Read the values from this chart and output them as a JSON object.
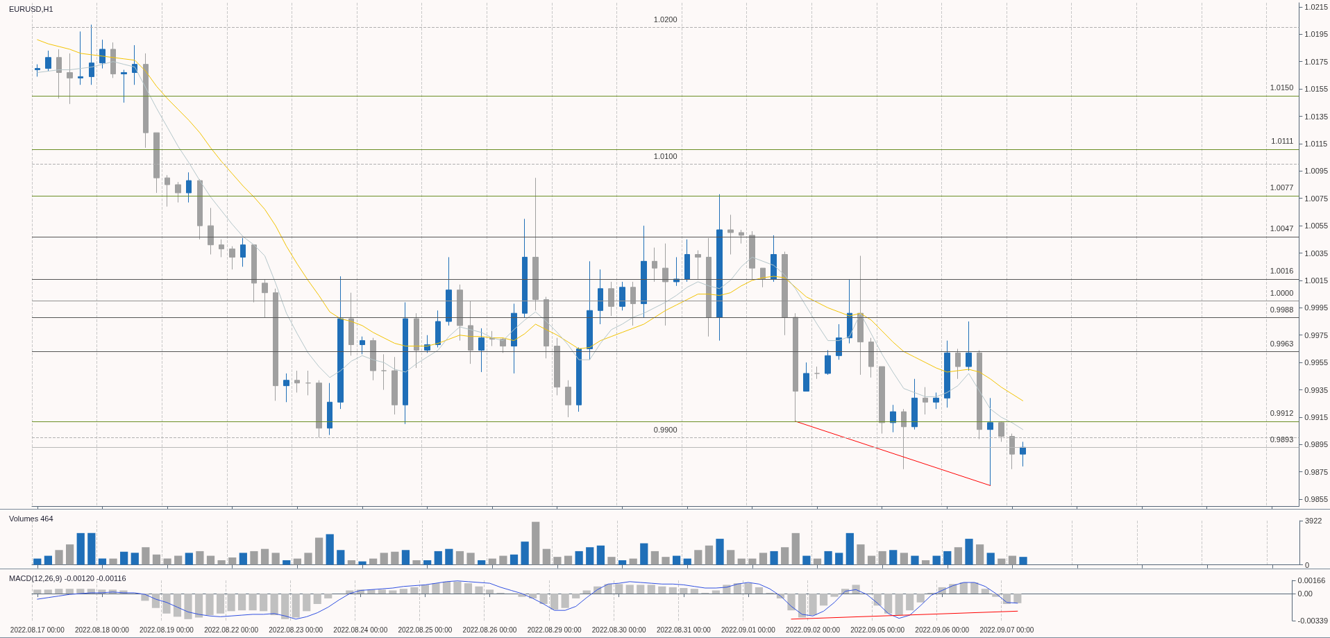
{
  "chart_data": [
    {
      "type": "candlestick",
      "title": "EURUSD,H1",
      "categories": [
        null,
        null,
        null,
        null,
        null,
        null,
        null,
        null,
        null,
        null,
        null,
        null,
        null,
        null,
        null,
        null,
        null,
        null,
        null,
        null,
        null,
        null,
        null,
        null,
        null,
        null,
        null,
        null,
        null,
        null,
        null,
        null,
        null,
        null,
        null,
        null,
        null,
        null,
        null,
        null,
        null,
        null,
        null,
        null,
        null,
        null,
        null,
        null,
        null,
        null,
        null,
        null,
        null,
        null,
        null,
        null,
        null,
        null,
        null,
        null,
        null,
        null,
        null,
        null,
        null,
        null,
        null,
        null,
        null,
        null,
        null,
        null,
        null,
        null,
        null,
        null,
        null,
        null,
        null,
        null,
        null,
        null,
        null,
        null,
        null,
        null,
        null,
        null,
        null,
        null,
        null,
        null,
        null,
        null,
        null,
        null,
        null,
        null,
        null,
        null,
        null,
        null,
        null,
        null,
        null,
        null,
        null,
        null,
        null,
        null,
        null,
        null,
        null,
        null,
        null,
        null,
        null
      ],
      "ohlc": [
        [
          1.0169,
          1.0173,
          1.0164,
          1.017
        ],
        [
          1.017,
          1.0183,
          1.0168,
          1.0178
        ],
        [
          1.0178,
          1.0184,
          1.0148,
          1.0167
        ],
        [
          1.0167,
          1.0181,
          1.0144,
          1.0163
        ],
        [
          1.0163,
          1.0197,
          1.0158,
          1.0164
        ],
        [
          1.0164,
          1.0202,
          1.0158,
          1.0174
        ],
        [
          1.0174,
          1.0191,
          1.017,
          1.0184
        ],
        [
          1.0184,
          1.0189,
          1.0163,
          1.0166
        ],
        [
          1.0166,
          1.0169,
          1.0145,
          1.0167
        ],
        [
          1.0167,
          1.0187,
          1.0158,
          1.0173
        ],
        [
          1.0173,
          1.0181,
          1.0112,
          1.0123
        ],
        [
          1.0123,
          1.0123,
          1.0079,
          1.009
        ],
        [
          1.009,
          1.0092,
          1.0069,
          1.0085
        ],
        [
          1.0085,
          1.0087,
          1.0072,
          1.0079
        ],
        [
          1.0079,
          1.0094,
          1.0072,
          1.0088
        ],
        [
          1.0088,
          1.0089,
          1.0045,
          1.0055
        ],
        [
          1.0055,
          1.0068,
          1.0034,
          1.0041
        ],
        [
          1.0041,
          1.0045,
          1.0032,
          1.0038
        ],
        [
          1.0038,
          1.004,
          1.0023,
          1.0032
        ],
        [
          1.0032,
          1.0046,
          1.0025,
          1.0041
        ],
        [
          1.0041,
          1.0041,
          0.9999,
          1.0013
        ],
        [
          1.0013,
          1.0016,
          0.9988,
          1.0006
        ],
        [
          1.0006,
          1.0009,
          0.9927,
          0.9938
        ],
        [
          0.9938,
          0.9947,
          0.9926,
          0.9942
        ],
        [
          0.9942,
          0.9949,
          0.9933,
          0.994
        ],
        [
          0.994,
          0.9949,
          0.9931,
          0.994
        ],
        [
          0.994,
          0.9942,
          0.99,
          0.9907
        ],
        [
          0.9907,
          0.994,
          0.9902,
          0.9926
        ],
        [
          0.9926,
          1.0018,
          0.9921,
          0.9987
        ],
        [
          0.9987,
          1.0006,
          0.996,
          0.9968
        ],
        [
          0.9968,
          0.9974,
          0.9961,
          0.9971
        ],
        [
          0.9971,
          0.9973,
          0.9942,
          0.9949
        ],
        [
          0.9949,
          0.9961,
          0.9935,
          0.9949
        ],
        [
          0.9949,
          0.9959,
          0.9917,
          0.9924
        ],
        [
          0.9924,
          0.9999,
          0.991,
          0.9987
        ],
        [
          0.9987,
          0.9991,
          0.9951,
          0.9964
        ],
        [
          0.9964,
          0.9975,
          0.9962,
          0.9968
        ],
        [
          0.9968,
          0.9993,
          0.9966,
          0.9985
        ],
        [
          0.9985,
          1.0032,
          0.9982,
          1.0008
        ],
        [
          1.0008,
          1.0012,
          0.9971,
          0.9982
        ],
        [
          0.9982,
          1.0,
          0.9954,
          0.9964
        ],
        [
          0.9964,
          0.998,
          0.9948,
          0.9973
        ],
        [
          0.9973,
          0.9978,
          0.9967,
          0.9972
        ],
        [
          0.9972,
          0.9973,
          0.9962,
          0.9967
        ],
        [
          0.9967,
          0.9998,
          0.9947,
          0.9991
        ],
        [
          0.9991,
          1.006,
          0.9988,
          1.0032
        ],
        [
          1.0032,
          1.009,
          0.9993,
          1.0001
        ],
        [
          1.0001,
          1.0003,
          0.9958,
          0.9967
        ],
        [
          0.9967,
          0.9973,
          0.9931,
          0.9937
        ],
        [
          0.9937,
          0.9942,
          0.9915,
          0.9924
        ],
        [
          0.9924,
          0.9966,
          0.9919,
          0.9965
        ],
        [
          0.9965,
          1.0029,
          0.9957,
          0.9993
        ],
        [
          0.9993,
          1.0023,
          0.9983,
          1.0009
        ],
        [
          1.0009,
          1.0014,
          0.9989,
          0.9996
        ],
        [
          0.9996,
          1.0014,
          0.9993,
          1.001
        ],
        [
          1.001,
          1.0014,
          0.9982,
          0.9998
        ],
        [
          0.9998,
          1.0055,
          0.9988,
          1.0029
        ],
        [
          1.0029,
          1.0039,
          1.0014,
          1.0024
        ],
        [
          1.0024,
          1.0042,
          0.9982,
          1.0014
        ],
        [
          1.0014,
          1.0032,
          1.0011,
          1.0016
        ],
        [
          1.0016,
          1.0045,
          1.0014,
          1.0034
        ],
        [
          1.0034,
          1.0037,
          1.0016,
          1.0032
        ],
        [
          1.0032,
          1.0046,
          0.9974,
          0.9988
        ],
        [
          0.9988,
          1.0078,
          0.9971,
          1.0052
        ],
        [
          1.0052,
          1.0063,
          1.0034,
          1.005
        ],
        [
          1.005,
          1.0052,
          1.0042,
          1.0048
        ],
        [
          1.0048,
          1.0051,
          1.0016,
          1.0024
        ],
        [
          1.0024,
          1.0024,
          1.001,
          1.0016
        ],
        [
          1.0016,
          1.0048,
          1.0014,
          1.0034
        ],
        [
          1.0034,
          1.0036,
          0.9975,
          0.9988
        ],
        [
          0.9988,
          0.9991,
          0.9912,
          0.9934
        ],
        [
          0.9934,
          0.9955,
          0.9934,
          0.9947
        ],
        [
          0.9947,
          0.9952,
          0.9943,
          0.9947
        ],
        [
          0.9947,
          0.9964,
          0.9946,
          0.996
        ],
        [
          0.996,
          0.9983,
          0.9957,
          0.9973
        ],
        [
          0.9973,
          1.0016,
          0.9969,
          0.9991
        ],
        [
          0.9991,
          1.0033,
          0.9946,
          0.997
        ],
        [
          0.997,
          0.9973,
          0.9944,
          0.9952
        ],
        [
          0.9952,
          0.9952,
          0.9903,
          0.9911
        ],
        [
          0.9911,
          0.9924,
          0.9904,
          0.9919
        ],
        [
          0.9919,
          0.9921,
          0.9877,
          0.9908
        ],
        [
          0.9908,
          0.9943,
          0.9906,
          0.9929
        ],
        [
          0.9929,
          0.9937,
          0.9917,
          0.9926
        ],
        [
          0.9926,
          0.9933,
          0.9921,
          0.9929
        ],
        [
          0.9929,
          0.9971,
          0.9922,
          0.9962
        ],
        [
          0.9962,
          0.9965,
          0.9943,
          0.9952
        ],
        [
          0.9952,
          0.9985,
          0.9949,
          0.9962
        ],
        [
          0.9962,
          0.9964,
          0.9899,
          0.9906
        ],
        [
          0.9906,
          0.9929,
          0.9865,
          0.9911
        ],
        [
          0.9911,
          0.9912,
          0.9897,
          0.9901
        ],
        [
          0.9901,
          0.9903,
          0.9877,
          0.9888
        ],
        [
          0.9888,
          0.9897,
          0.9879,
          0.9893
        ],
        null,
        null,
        null,
        null,
        null,
        null,
        null,
        null,
        null,
        null,
        null,
        null,
        null,
        null,
        null,
        null,
        null,
        null,
        null,
        null,
        null,
        null,
        null,
        null,
        null
      ],
      "colors": [
        "#1f6fb8",
        "#1f6fb8",
        "#a0a0a0",
        "#a0a0a0",
        "#1f6fb8",
        "#1f6fb8",
        "#1f6fb8",
        "#a0a0a0",
        "#1f6fb8",
        "#1f6fb8",
        "#a0a0a0",
        "#a0a0a0",
        "#a0a0a0",
        "#a0a0a0",
        "#1f6fb8",
        "#a0a0a0",
        "#a0a0a0",
        "#a0a0a0",
        "#a0a0a0",
        "#1f6fb8",
        "#a0a0a0",
        "#a0a0a0",
        "#a0a0a0",
        "#1f6fb8",
        "#a0a0a0",
        "#a0a0a0",
        "#a0a0a0",
        "#1f6fb8",
        "#1f6fb8",
        "#a0a0a0",
        "#1f6fb8",
        "#a0a0a0",
        "#a0a0a0",
        "#a0a0a0",
        "#1f6fb8",
        "#a0a0a0",
        "#1f6fb8",
        "#1f6fb8",
        "#1f6fb8",
        "#a0a0a0",
        "#a0a0a0",
        "#1f6fb8",
        "#a0a0a0",
        "#a0a0a0",
        "#1f6fb8",
        "#1f6fb8",
        "#a0a0a0",
        "#a0a0a0",
        "#a0a0a0",
        "#a0a0a0",
        "#1f6fb8",
        "#1f6fb8",
        "#1f6fb8",
        "#a0a0a0",
        "#1f6fb8",
        "#a0a0a0",
        "#1f6fb8",
        "#a0a0a0",
        "#a0a0a0",
        "#1f6fb8",
        "#1f6fb8",
        "#a0a0a0",
        "#a0a0a0",
        "#1f6fb8",
        "#a0a0a0",
        "#a0a0a0",
        "#a0a0a0",
        "#a0a0a0",
        "#1f6fb8",
        "#a0a0a0",
        "#a0a0a0",
        "#1f6fb8",
        "#a0a0a0",
        "#1f6fb8",
        "#1f6fb8",
        "#1f6fb8",
        "#a0a0a0",
        "#a0a0a0",
        "#a0a0a0",
        "#1f6fb8",
        "#a0a0a0",
        "#1f6fb8",
        "#a0a0a0",
        "#1f6fb8",
        "#1f6fb8",
        "#a0a0a0",
        "#1f6fb8",
        "#a0a0a0",
        "#1f6fb8",
        "#a0a0a0",
        "#a0a0a0",
        "#1f6fb8",
        null,
        null,
        null,
        null,
        null,
        null,
        null,
        null,
        null,
        null,
        null,
        null,
        null,
        null,
        null,
        null,
        null,
        null,
        null,
        null,
        null,
        null,
        null,
        null,
        null
      ],
      "series": [
        {
          "type": "line",
          "color": "#f2c300",
          "values": [
            1.0191,
            1.0188,
            1.0186,
            1.0184,
            1.0181,
            1.018,
            1.0179,
            1.0178,
            1.0177,
            1.0176,
            1.0168,
            1.0157,
            1.0148,
            1.014,
            1.0132,
            1.0123,
            1.0112,
            1.0102,
            1.0093,
            1.0084,
            1.0076,
            1.0067,
            1.0055,
            1.004,
            1.0027,
            1.0015,
            1.0004,
            0.9992,
            0.9987,
            0.9985,
            0.9982,
            0.9977,
            0.9973,
            0.9969,
            0.9967,
            0.9967,
            0.9967,
            0.9969,
            0.9972,
            0.9975,
            0.9974,
            0.9974,
            0.9973,
            0.9973,
            0.9971,
            0.9976,
            0.9983,
            0.9979,
            0.9975,
            0.997,
            0.9965,
            0.9966,
            0.9971,
            0.9974,
            0.9977,
            0.998,
            0.9983,
            0.9988,
            0.9993,
            0.9997,
            1.0001,
            1.0005,
            1.0005,
            1.0004,
            1.0006,
            1.0011,
            1.0015,
            1.0017,
            1.0018,
            1.0017,
            1.001,
            1.0003,
            0.9999,
            0.9995,
            0.9992,
            0.9989,
            0.9991,
            0.9986,
            0.9978,
            0.997,
            0.9963,
            0.9959,
            0.9955,
            0.9951,
            0.9948,
            0.9949,
            0.995,
            0.9948,
            0.9943,
            0.9937,
            0.9932,
            0.9927,
            null,
            null,
            null,
            null,
            null,
            null,
            null,
            null,
            null,
            null,
            null,
            null,
            null,
            null,
            null,
            null,
            null,
            null,
            null,
            null,
            null,
            null,
            null,
            null,
            null
          ]
        },
        {
          "type": "line",
          "color": "#b4c6ca",
          "values": [
            1.0167,
            1.0168,
            1.0169,
            1.0169,
            1.017,
            1.0171,
            1.0173,
            1.0175,
            1.0173,
            1.0171,
            1.0156,
            1.0141,
            1.0127,
            1.0113,
            1.0101,
            1.0088,
            1.0076,
            1.0066,
            1.0056,
            1.0047,
            1.0041,
            1.0033,
            1.0013,
            0.9991,
            0.9976,
            0.9962,
            0.9952,
            0.9944,
            0.9949,
            0.9956,
            0.996,
            0.9957,
            0.9955,
            0.995,
            0.9948,
            0.9954,
            0.9959,
            0.9964,
            0.9974,
            0.9981,
            0.9979,
            0.9977,
            0.9973,
            0.9971,
            0.9979,
            0.9986,
            0.9992,
            0.9985,
            0.9977,
            0.9968,
            0.9957,
            0.9957,
            0.9969,
            0.9979,
            0.9983,
            0.9988,
            0.9991,
            0.9995,
            0.9999,
            1.0004,
            1.001,
            1.0014,
            1.0011,
            1.0009,
            1.0015,
            1.0025,
            1.0032,
            1.0029,
            1.0026,
            1.0019,
            1.0009,
            0.9996,
            0.9983,
            0.9971,
            0.9971,
            0.9974,
            0.9991,
            0.9976,
            0.9961,
            0.9948,
            0.9936,
            0.9933,
            0.993,
            0.993,
            0.9933,
            0.9938,
            0.9947,
            0.9934,
            0.9921,
            0.9915,
            0.9911,
            0.9906,
            null,
            null,
            null,
            null,
            null,
            null,
            null,
            null,
            null,
            null,
            null,
            null,
            null,
            null,
            null,
            null,
            null,
            null,
            null,
            null,
            null,
            null,
            null,
            null,
            null
          ]
        },
        {
          "type": "line",
          "color": "#ff0000",
          "values": [
            null,
            null,
            null,
            null,
            null,
            null,
            null,
            null,
            null,
            null,
            null,
            null,
            null,
            null,
            null,
            null,
            null,
            null,
            null,
            null,
            null,
            null,
            null,
            null,
            null,
            null,
            null,
            null,
            null,
            null,
            null,
            null,
            null,
            null,
            null,
            null,
            null,
            null,
            null,
            null,
            null,
            null,
            null,
            null,
            null,
            null,
            null,
            null,
            null,
            null,
            null,
            null,
            null,
            null,
            null,
            null,
            null,
            null,
            null,
            null,
            null,
            null,
            null,
            null,
            null,
            null,
            null,
            null,
            null,
            null,
            0.9912,
            null,
            null,
            null,
            null,
            null,
            null,
            null,
            null,
            null,
            null,
            null,
            null,
            null,
            null,
            null,
            null,
            null,
            0.9865,
            null,
            null,
            null,
            null,
            null,
            null,
            null,
            null,
            null,
            null,
            null,
            null,
            null,
            null,
            null,
            null,
            null,
            null,
            null,
            null,
            null,
            null,
            null,
            null,
            null,
            null,
            null,
            null
          ]
        }
      ],
      "ref_lines": [
        {
          "axis": "y",
          "value": 1.015,
          "label": "1.0150",
          "color": "#6b8e23"
        },
        {
          "axis": "y",
          "value": 1.0111,
          "label": "1.0111",
          "color": "#6b8e23"
        },
        {
          "axis": "y",
          "value": 1.0077,
          "label": "1.0077",
          "color": "#6b8e23"
        },
        {
          "axis": "y",
          "value": 0.9912,
          "label": "0.9912",
          "color": "#6b8e23"
        },
        {
          "axis": "y",
          "value": 0.9893,
          "label": "0.9893",
          "color": "#b8b8b8"
        },
        {
          "axis": "y",
          "value": 1.02,
          "label": "1.0200",
          "color": "#b0b0b0",
          "line_style": "dashed"
        },
        {
          "axis": "y",
          "value": 1.01,
          "label": "1.0100",
          "color": "#b0b0b0",
          "line_style": "dashed"
        },
        {
          "axis": "y",
          "value": 1.0,
          "label": "1.0000",
          "color": "#909090"
        },
        {
          "axis": "y",
          "value": 0.99,
          "label": "0.9900",
          "color": "#b0b0b0",
          "line_style": "dashed"
        },
        {
          "axis": "y",
          "value": 1.0047,
          "label": "1.0047",
          "color": "#555555"
        },
        {
          "axis": "y",
          "value": 1.0016,
          "label": "1.0016",
          "color": "#555555"
        },
        {
          "axis": "y",
          "value": 0.9988,
          "label": "0.9988",
          "color": "#555555"
        },
        {
          "axis": "y",
          "value": 0.9963,
          "label": "0.9963",
          "color": "#555555"
        }
      ],
      "ylim": [
        0.985,
        1.0218
      ],
      "yticks": [
        0.9855,
        0.9875,
        0.9895,
        0.9915,
        0.9935,
        0.9955,
        0.9975,
        0.9995,
        1.0015,
        1.0035,
        1.0055,
        1.0075,
        1.0095,
        1.0115,
        1.0135,
        1.0155,
        1.0175,
        1.0195,
        1.0215
      ],
      "grid": "x",
      "marker": "none",
      "tick_labels": "y"
    },
    {
      "type": "bar",
      "title": "Volumes 464",
      "categories": [
        null,
        null,
        null,
        null,
        null,
        null,
        null,
        null,
        null,
        null,
        null,
        null,
        null,
        null,
        null,
        null,
        null,
        null,
        null,
        null,
        null,
        null,
        null,
        null,
        null,
        null,
        null,
        null,
        null,
        null,
        null,
        null,
        null,
        null,
        null,
        null,
        null,
        null,
        null,
        null,
        null,
        null,
        null,
        null,
        null,
        null,
        null,
        null,
        null,
        null,
        null,
        null,
        null,
        null,
        null,
        null,
        null,
        null,
        null,
        null,
        null,
        null,
        null,
        null,
        null,
        null,
        null,
        null,
        null,
        null,
        null,
        null,
        null,
        null,
        null,
        null,
        null,
        null,
        null,
        null,
        null,
        null,
        null,
        null,
        null,
        null,
        null,
        null,
        null,
        null,
        null,
        null,
        null,
        null,
        null,
        null,
        null,
        null,
        null,
        null,
        null,
        null,
        null,
        null,
        null,
        null,
        null,
        null,
        null,
        null,
        null,
        null,
        null,
        null,
        null,
        null,
        null
      ],
      "values": [
        550,
        800,
        1310,
        1810,
        2820,
        2820,
        550,
        550,
        1160,
        1060,
        1560,
        910,
        550,
        800,
        1060,
        1210,
        800,
        400,
        650,
        1060,
        1210,
        1410,
        1060,
        400,
        550,
        1060,
        2410,
        2720,
        1310,
        400,
        300,
        550,
        1060,
        1160,
        1310,
        400,
        400,
        1210,
        1410,
        1210,
        1060,
        400,
        550,
        800,
        910,
        2060,
        3820,
        1410,
        700,
        800,
        1210,
        1560,
        1710,
        700,
        400,
        550,
        1910,
        1210,
        700,
        800,
        550,
        1310,
        1710,
        2310,
        1310,
        550,
        550,
        1060,
        1210,
        1560,
        2820,
        800,
        550,
        1210,
        1060,
        2820,
        1810,
        800,
        1210,
        1310,
        1060,
        800,
        400,
        800,
        1210,
        1560,
        2310,
        1810,
        1060,
        550,
        800,
        700,
        null,
        null,
        null,
        null,
        null,
        null,
        null,
        null,
        null,
        null,
        null,
        null,
        null,
        null,
        null,
        null,
        null,
        null,
        null,
        null,
        null,
        null,
        null,
        null,
        null
      ],
      "colors": [
        "#1f6fb8",
        "#1f6fb8",
        "#a0a0a0",
        "#a0a0a0",
        "#1f6fb8",
        "#1f6fb8",
        "#1f6fb8",
        "#a0a0a0",
        "#1f6fb8",
        "#1f6fb8",
        "#a0a0a0",
        "#a0a0a0",
        "#a0a0a0",
        "#a0a0a0",
        "#1f6fb8",
        "#a0a0a0",
        "#a0a0a0",
        "#a0a0a0",
        "#a0a0a0",
        "#1f6fb8",
        "#a0a0a0",
        "#a0a0a0",
        "#a0a0a0",
        "#1f6fb8",
        "#a0a0a0",
        "#a0a0a0",
        "#a0a0a0",
        "#1f6fb8",
        "#1f6fb8",
        "#a0a0a0",
        "#1f6fb8",
        "#a0a0a0",
        "#a0a0a0",
        "#a0a0a0",
        "#1f6fb8",
        "#a0a0a0",
        "#1f6fb8",
        "#1f6fb8",
        "#1f6fb8",
        "#a0a0a0",
        "#a0a0a0",
        "#1f6fb8",
        "#a0a0a0",
        "#a0a0a0",
        "#1f6fb8",
        "#1f6fb8",
        "#a0a0a0",
        "#a0a0a0",
        "#a0a0a0",
        "#a0a0a0",
        "#1f6fb8",
        "#1f6fb8",
        "#1f6fb8",
        "#a0a0a0",
        "#1f6fb8",
        "#a0a0a0",
        "#1f6fb8",
        "#a0a0a0",
        "#a0a0a0",
        "#1f6fb8",
        "#1f6fb8",
        "#a0a0a0",
        "#a0a0a0",
        "#1f6fb8",
        "#a0a0a0",
        "#a0a0a0",
        "#a0a0a0",
        "#a0a0a0",
        "#1f6fb8",
        "#a0a0a0",
        "#a0a0a0",
        "#1f6fb8",
        "#a0a0a0",
        "#1f6fb8",
        "#1f6fb8",
        "#1f6fb8",
        "#a0a0a0",
        "#a0a0a0",
        "#a0a0a0",
        "#1f6fb8",
        "#a0a0a0",
        "#1f6fb8",
        "#a0a0a0",
        "#1f6fb8",
        "#1f6fb8",
        "#a0a0a0",
        "#1f6fb8",
        "#a0a0a0",
        "#1f6fb8",
        "#a0a0a0",
        "#a0a0a0",
        "#1f6fb8",
        null,
        null,
        null,
        null,
        null,
        null,
        null,
        null,
        null,
        null,
        null,
        null,
        null,
        null,
        null,
        null,
        null,
        null,
        null,
        null,
        null,
        null,
        null,
        null,
        null
      ],
      "ylim": [
        0,
        3922
      ],
      "yticks": [
        0,
        3922
      ],
      "grid": "x",
      "tick_labels": "y"
    },
    {
      "type": "bar",
      "title": "MACD(12,26,9) -0.00120 -0.00116",
      "categories": [
        "2022.08.17 00:00",
        null,
        null,
        null,
        null,
        null,
        "2022.08.18 00:00",
        null,
        null,
        null,
        null,
        null,
        "2022.08.19 00:00",
        null,
        null,
        null,
        null,
        null,
        "2022.08.22 00:00",
        null,
        null,
        null,
        null,
        null,
        "2022.08.23 00:00",
        null,
        null,
        null,
        null,
        null,
        "2022.08.24 00:00",
        null,
        null,
        null,
        null,
        null,
        "2022.08.25 00:00",
        null,
        null,
        null,
        null,
        null,
        "2022.08.26 00:00",
        null,
        null,
        null,
        null,
        null,
        "2022.08.29 00:00",
        null,
        null,
        null,
        null,
        null,
        "2022.08.30 00:00",
        null,
        null,
        null,
        null,
        null,
        "2022.08.31 00:00",
        null,
        null,
        null,
        null,
        null,
        "2022.09.01 00:00",
        null,
        null,
        null,
        null,
        null,
        "2022.09.02 00:00",
        null,
        null,
        null,
        null,
        null,
        "2022.09.05 00:00",
        null,
        null,
        null,
        null,
        null,
        "2022.09.06 00:00",
        null,
        null,
        null,
        null,
        null,
        "2022.09.07 00:00",
        null,
        null,
        null,
        null,
        null,
        null,
        null,
        null,
        null,
        null,
        null,
        null,
        null,
        null,
        null,
        null,
        null,
        null,
        null,
        null,
        null,
        null,
        null,
        null,
        null,
        null
      ],
      "series": [
        {
          "color": "#c0c0c0",
          "values": [
            0.0005,
            0.0005,
            0.0006,
            0.0006,
            0.0006,
            0.0006,
            0.0005,
            0.0005,
            0.0004,
            null,
            -0.0009,
            -0.0018,
            -0.0025,
            -0.0029,
            -0.0032,
            -0.003,
            -0.0027,
            -0.0025,
            -0.0022,
            -0.0021,
            -0.0021,
            -0.0022,
            -0.0027,
            -0.0032,
            -0.003,
            -0.0022,
            -0.0013,
            -0.0006,
            0,
            0.0004,
            0.0005,
            0.0005,
            0.0005,
            0.0004,
            0.0006,
            0.0008,
            0.0011,
            0.0013,
            0.0015,
            0.0015,
            0.0013,
            0.0009,
            0.0005,
            0.0001,
            null,
            -0.0004,
            -0.0006,
            -0.0013,
            -0.002,
            -0.0018,
            -0.0006,
            0.0004,
            0.0009,
            0.0012,
            0.0012,
            0.0011,
            0.0011,
            0.0011,
            0.0009,
            0.0008,
            0.0007,
            0.0006,
            0.0001,
            0.0004,
            0.0011,
            0.0013,
            0.0013,
            0.0008,
            0.0001,
            -0.0006,
            -0.0021,
            -0.003,
            -0.0027,
            -0.0015,
            -0.0004,
            0.0006,
            0.0011,
            null,
            -0.0015,
            -0.0025,
            -0.0027,
            -0.0021,
            -0.0011,
            0.0001,
            0.0008,
            0.0012,
            0.0014,
            0.0014,
            0.0006,
            -0.0004,
            -0.0013,
            -0.0012,
            null,
            null,
            null,
            null,
            null,
            null,
            null,
            null,
            null,
            null,
            null,
            null,
            null,
            null,
            null,
            null,
            null,
            null,
            null,
            null,
            null,
            null,
            null,
            null,
            null
          ]
        },
        {
          "type": "line",
          "color": "#2f4fe0",
          "values": [
            -0.0007,
            -0.0005,
            -0.0003,
            -0.0001,
            0,
            0.0001,
            0.0001,
            0.0002,
            0.0001,
            0.0001,
            -0.0001,
            -0.0007,
            -0.0011,
            -0.0017,
            -0.0023,
            -0.0026,
            -0.0028,
            -0.0029,
            -0.0028,
            -0.0027,
            -0.0026,
            -0.0026,
            -0.0025,
            -0.0028,
            -0.0032,
            -0.0029,
            -0.0024,
            -0.0017,
            -0.0008,
            0,
            0.0004,
            0.0005,
            0.0006,
            0.0007,
            0.0009,
            0.001,
            0.0011,
            0.0013,
            0.0015,
            0.0016,
            0.0015,
            0.0014,
            0.0013,
            0.0008,
            0.0004,
            0,
            -0.0006,
            -0.0013,
            -0.0021,
            -0.0021,
            -0.0016,
            -0.0005,
            0.0005,
            0.0012,
            0.0013,
            0.0015,
            0.0014,
            0.0013,
            0.0012,
            0.0012,
            0.0011,
            0.0009,
            0.0007,
            0.0007,
            0.0008,
            0.0012,
            0.0014,
            0.0012,
            0.0006,
            -0.0003,
            -0.0016,
            -0.0026,
            -0.0028,
            -0.0022,
            -0.0011,
            0.0003,
            0.0005,
            -0.0001,
            -0.0012,
            -0.0025,
            -0.0031,
            -0.0027,
            -0.0015,
            -0.0002,
            0.0004,
            0.001,
            0.0014,
            0.0014,
            0.0009,
            0,
            -0.0011,
            -0.0012,
            null,
            null,
            null,
            null,
            null,
            null,
            null,
            null,
            null,
            null,
            null,
            null,
            null,
            null,
            null,
            null,
            null,
            null,
            null,
            null,
            null,
            null,
            null,
            null,
            null
          ]
        },
        {
          "type": "line",
          "color": "#ff0000",
          "values": [
            null,
            null,
            null,
            null,
            null,
            null,
            null,
            null,
            null,
            null,
            null,
            null,
            null,
            null,
            null,
            null,
            null,
            null,
            null,
            null,
            null,
            null,
            null,
            null,
            null,
            null,
            null,
            null,
            null,
            null,
            null,
            null,
            null,
            null,
            null,
            null,
            null,
            null,
            null,
            null,
            null,
            null,
            null,
            null,
            null,
            null,
            null,
            null,
            null,
            null,
            null,
            null,
            null,
            null,
            null,
            null,
            null,
            null,
            null,
            null,
            null,
            null,
            null,
            null,
            null,
            null,
            null,
            null,
            null,
            null,
            -0.0032,
            null,
            null,
            null,
            null,
            null,
            null,
            null,
            null,
            null,
            null,
            null,
            null,
            null,
            null,
            null,
            null,
            null,
            null,
            null,
            null,
            -0.0022,
            null,
            null,
            null,
            null,
            null,
            null,
            null,
            null,
            null,
            null,
            null,
            null,
            null,
            null,
            null,
            null,
            null,
            null,
            null,
            null,
            null,
            null,
            null,
            null,
            null
          ]
        }
      ],
      "ylim": [
        -0.00339,
        0.00166
      ],
      "yticks": [
        -0.00339,
        {
          "value": 0,
          "label": "0.00"
        },
        0.00166
      ],
      "grid": "x",
      "marker": "none"
    }
  ]
}
